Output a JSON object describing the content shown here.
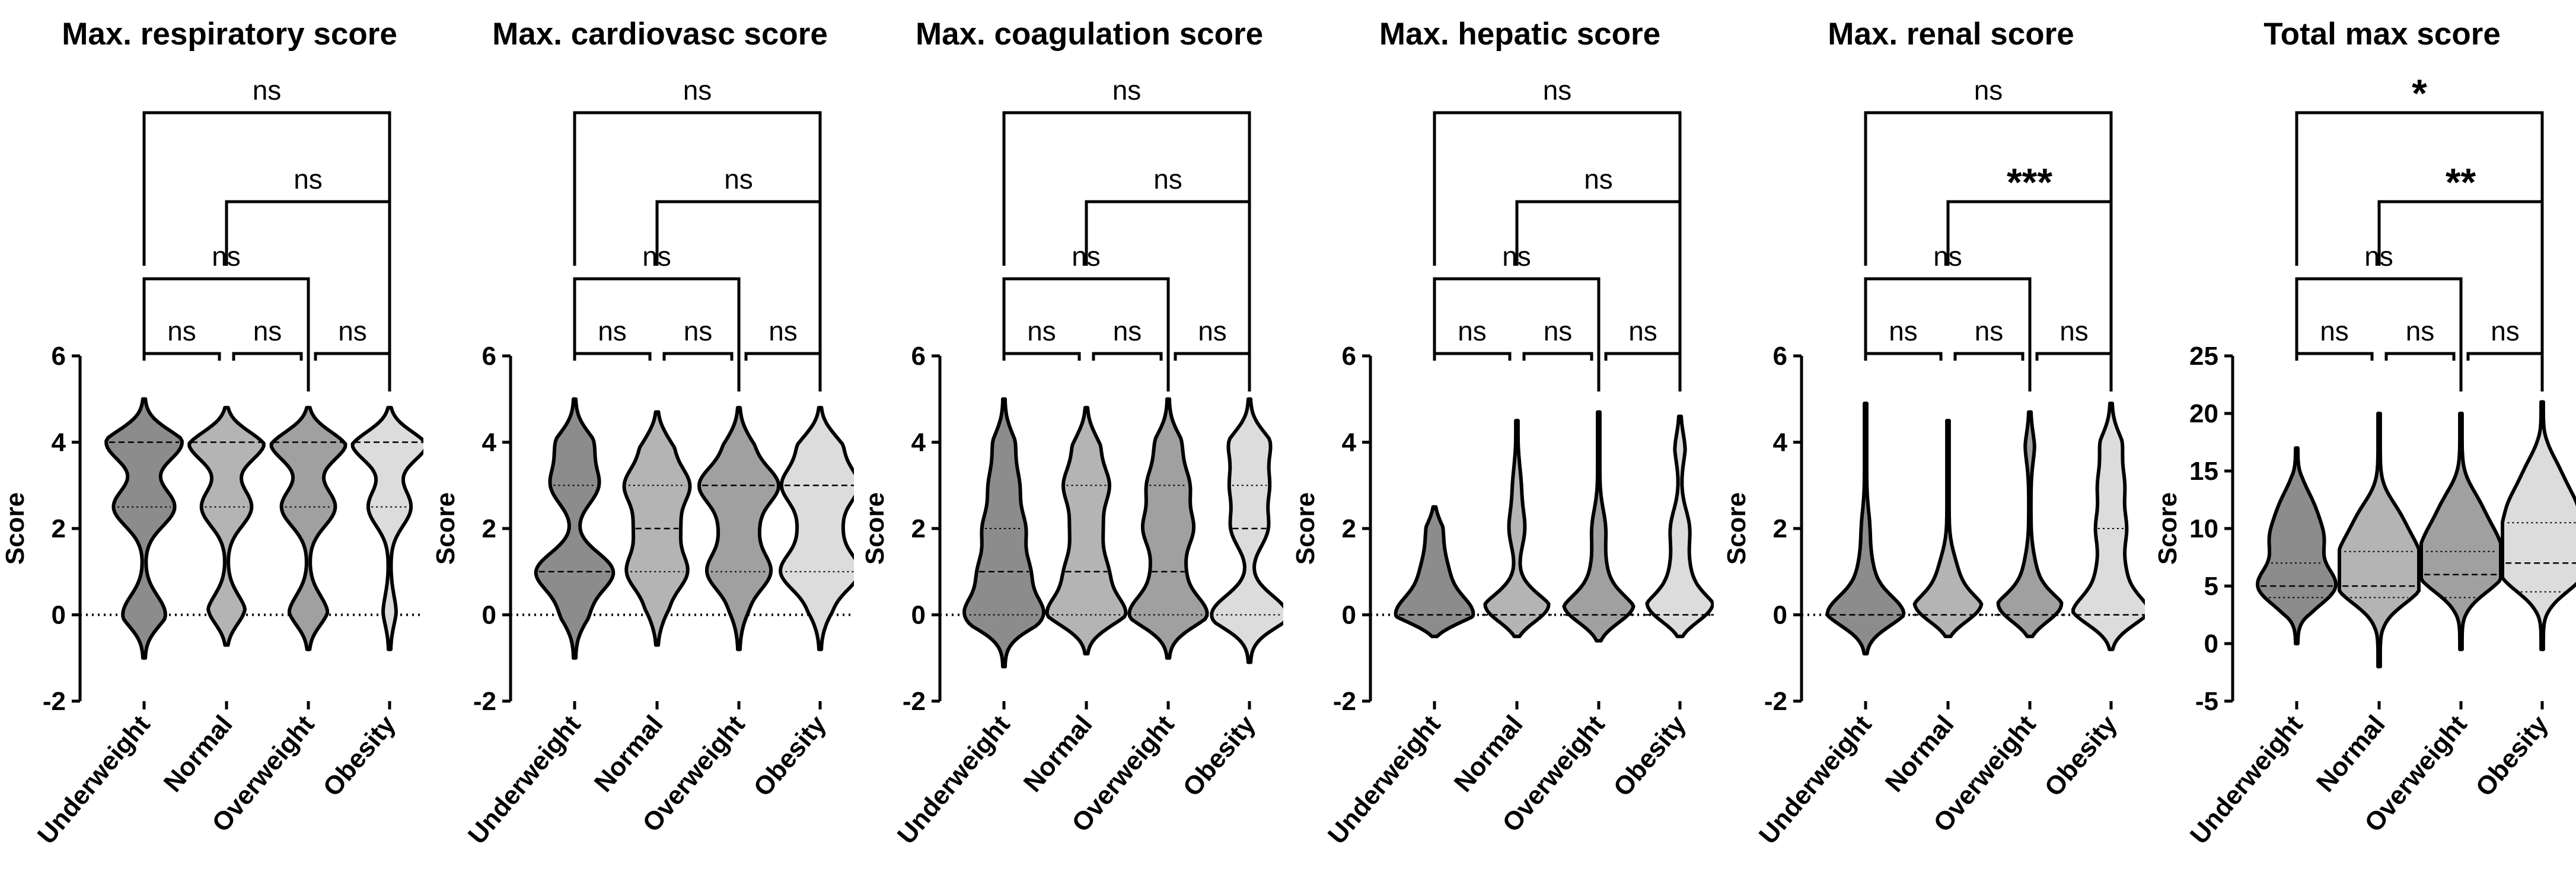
{
  "chart_data": [
    {
      "type": "violin",
      "title": "Max. respiratory score",
      "ylabel": "Score",
      "ylim": [
        -2,
        6
      ],
      "yticks": [
        "6",
        "4",
        "2",
        "0",
        "-2"
      ],
      "reference_line": 0,
      "categories": [
        "Underweight",
        "Normal",
        "Overweight",
        "Obesity"
      ],
      "colors": [
        "#8c8c8c",
        "#b4b4b4",
        "#a0a0a0",
        "#dcdcdc"
      ],
      "series": [
        {
          "name": "Underweight",
          "min": -1,
          "max": 5,
          "q1": 2.5,
          "median": 4,
          "q3": 4,
          "modes": [
            [
              0,
              0.55
            ],
            [
              2.5,
              0.8
            ],
            [
              4,
              1.0
            ]
          ]
        },
        {
          "name": "Normal",
          "min": -0.7,
          "max": 4.8,
          "q1": 2.5,
          "median": 4,
          "q3": 4,
          "modes": [
            [
              0,
              0.5
            ],
            [
              2.5,
              0.65
            ],
            [
              4,
              1.0
            ]
          ]
        },
        {
          "name": "Overweight",
          "min": -0.8,
          "max": 4.8,
          "q1": 2.5,
          "median": 4,
          "q3": 4,
          "modes": [
            [
              0,
              0.5
            ],
            [
              2.5,
              0.7
            ],
            [
              4,
              1.0
            ]
          ]
        },
        {
          "name": "Obesity",
          "min": -0.8,
          "max": 4.8,
          "q1": 2.5,
          "median": 4,
          "q3": 4,
          "modes": [
            [
              0,
              0.15
            ],
            [
              2.5,
              0.55
            ],
            [
              4,
              1.0
            ]
          ]
        }
      ],
      "comparisons": [
        {
          "from": "Underweight",
          "to": "Normal",
          "label": "ns"
        },
        {
          "from": "Normal",
          "to": "Overweight",
          "label": "ns"
        },
        {
          "from": "Overweight",
          "to": "Obesity",
          "label": "ns"
        },
        {
          "from": "Underweight",
          "to": "Overweight",
          "label": "ns"
        },
        {
          "from": "Normal",
          "to": "Obesity",
          "label": "ns"
        },
        {
          "from": "Underweight",
          "to": "Obesity",
          "label": "ns"
        }
      ]
    },
    {
      "type": "violin",
      "title": "Max. cardiovasc score",
      "ylabel": "Score",
      "ylim": [
        -2,
        6
      ],
      "yticks": [
        "6",
        "4",
        "2",
        "0",
        "-2"
      ],
      "reference_line": 0,
      "categories": [
        "Underweight",
        "Normal",
        "Overweight",
        "Obesity"
      ],
      "colors": [
        "#8c8c8c",
        "#b4b4b4",
        "#a0a0a0",
        "#dcdcdc"
      ],
      "series": [
        {
          "name": "Underweight",
          "min": -1,
          "max": 5,
          "q1": 1,
          "median": 1,
          "q3": 3,
          "modes": [
            [
              0,
              0.3
            ],
            [
              1,
              1.0
            ],
            [
              3,
              0.6
            ],
            [
              4,
              0.45
            ]
          ]
        },
        {
          "name": "Normal",
          "min": -0.7,
          "max": 4.7,
          "q1": 1,
          "median": 2,
          "q3": 3,
          "modes": [
            [
              0,
              0.2
            ],
            [
              1,
              0.75
            ],
            [
              2,
              0.5
            ],
            [
              3,
              0.8
            ],
            [
              4,
              0.35
            ]
          ]
        },
        {
          "name": "Overweight",
          "min": -0.8,
          "max": 4.8,
          "q1": 1,
          "median": 3,
          "q3": 3,
          "modes": [
            [
              0,
              0.15
            ],
            [
              1,
              0.8
            ],
            [
              2,
              0.4
            ],
            [
              3,
              1.0
            ],
            [
              4,
              0.3
            ]
          ]
        },
        {
          "name": "Obesity",
          "min": -0.8,
          "max": 4.8,
          "q1": 1,
          "median": 3,
          "q3": 3,
          "modes": [
            [
              0,
              0.2
            ],
            [
              1,
              1.0
            ],
            [
              2,
              0.45
            ],
            [
              3,
              0.95
            ],
            [
              4,
              0.5
            ]
          ]
        }
      ],
      "comparisons": [
        {
          "from": "Underweight",
          "to": "Normal",
          "label": "ns"
        },
        {
          "from": "Normal",
          "to": "Overweight",
          "label": "ns"
        },
        {
          "from": "Overweight",
          "to": "Obesity",
          "label": "ns"
        },
        {
          "from": "Underweight",
          "to": "Overweight",
          "label": "ns"
        },
        {
          "from": "Normal",
          "to": "Obesity",
          "label": "ns"
        },
        {
          "from": "Underweight",
          "to": "Obesity",
          "label": "ns"
        }
      ]
    },
    {
      "type": "violin",
      "title": "Max. coagulation score",
      "ylabel": "Score",
      "ylim": [
        -2,
        6
      ],
      "yticks": [
        "6",
        "4",
        "2",
        "0",
        "-2"
      ],
      "reference_line": 0,
      "categories": [
        "Underweight",
        "Normal",
        "Overweight",
        "Obesity"
      ],
      "colors": [
        "#8c8c8c",
        "#b4b4b4",
        "#a0a0a0",
        "#dcdcdc"
      ],
      "series": [
        {
          "name": "Underweight",
          "min": -1.2,
          "max": 5,
          "q1": 0,
          "median": 1,
          "q3": 2,
          "modes": [
            [
              0,
              1.0
            ],
            [
              1,
              0.6
            ],
            [
              2,
              0.5
            ],
            [
              3,
              0.35
            ],
            [
              4,
              0.25
            ]
          ]
        },
        {
          "name": "Normal",
          "min": -0.9,
          "max": 4.8,
          "q1": 0,
          "median": 1,
          "q3": 3,
          "modes": [
            [
              0,
              1.0
            ],
            [
              1,
              0.5
            ],
            [
              2,
              0.35
            ],
            [
              3,
              0.55
            ],
            [
              4,
              0.3
            ]
          ]
        },
        {
          "name": "Overweight",
          "min": -1,
          "max": 5,
          "q1": 0,
          "median": 1,
          "q3": 3,
          "modes": [
            [
              0,
              1.0
            ],
            [
              1,
              0.35
            ],
            [
              2,
              0.6
            ],
            [
              3,
              0.5
            ],
            [
              4,
              0.3
            ]
          ]
        },
        {
          "name": "Obesity",
          "min": -1.1,
          "max": 5,
          "q1": 0,
          "median": 2,
          "q3": 3,
          "modes": [
            [
              0,
              1.0
            ],
            [
              2,
              0.45
            ],
            [
              3,
              0.45
            ],
            [
              4,
              0.5
            ]
          ]
        }
      ],
      "comparisons": [
        {
          "from": "Underweight",
          "to": "Normal",
          "label": "ns"
        },
        {
          "from": "Normal",
          "to": "Overweight",
          "label": "ns"
        },
        {
          "from": "Overweight",
          "to": "Obesity",
          "label": "ns"
        },
        {
          "from": "Underweight",
          "to": "Overweight",
          "label": "ns"
        },
        {
          "from": "Normal",
          "to": "Obesity",
          "label": "ns"
        },
        {
          "from": "Underweight",
          "to": "Obesity",
          "label": "ns"
        }
      ]
    },
    {
      "type": "violin",
      "title": "Max. hepatic score",
      "ylabel": "Score",
      "ylim": [
        -2,
        6
      ],
      "yticks": [
        "6",
        "4",
        "2",
        "0",
        "-2"
      ],
      "reference_line": 0,
      "categories": [
        "Underweight",
        "Normal",
        "Overweight",
        "Obesity"
      ],
      "colors": [
        "#8c8c8c",
        "#b4b4b4",
        "#a0a0a0",
        "#dcdcdc"
      ],
      "series": [
        {
          "name": "Underweight",
          "min": -0.5,
          "max": 2.5,
          "q1": 0,
          "median": 0,
          "q3": 0,
          "modes": [
            [
              0,
              1.0
            ],
            [
              1,
              0.3
            ],
            [
              2,
              0.18
            ]
          ]
        },
        {
          "name": "Normal",
          "min": -0.5,
          "max": 4.5,
          "q1": 0,
          "median": 0,
          "q3": 0,
          "modes": [
            [
              0,
              1.0
            ],
            [
              2,
              0.18
            ],
            [
              3,
              0.08
            ]
          ]
        },
        {
          "name": "Overweight",
          "min": -0.6,
          "max": 4.7,
          "q1": 0,
          "median": 0,
          "q3": 0,
          "modes": [
            [
              0,
              1.0
            ],
            [
              1,
              0.15
            ],
            [
              2,
              0.15
            ]
          ]
        },
        {
          "name": "Obesity",
          "min": -0.5,
          "max": 4.6,
          "q1": 0,
          "median": 0,
          "q3": 0,
          "modes": [
            [
              0,
              1.0
            ],
            [
              1,
              0.2
            ],
            [
              2,
              0.22
            ],
            [
              4,
              0.12
            ]
          ]
        }
      ],
      "comparisons": [
        {
          "from": "Underweight",
          "to": "Normal",
          "label": "ns"
        },
        {
          "from": "Normal",
          "to": "Overweight",
          "label": "ns"
        },
        {
          "from": "Overweight",
          "to": "Obesity",
          "label": "ns"
        },
        {
          "from": "Underweight",
          "to": "Overweight",
          "label": "ns"
        },
        {
          "from": "Normal",
          "to": "Obesity",
          "label": "ns"
        },
        {
          "from": "Underweight",
          "to": "Obesity",
          "label": "ns"
        }
      ]
    },
    {
      "type": "violin",
      "title": "Max. renal score",
      "ylabel": "Score",
      "ylim": [
        -2,
        6
      ],
      "yticks": [
        "6",
        "4",
        "2",
        "0",
        "-2"
      ],
      "reference_line": 0,
      "categories": [
        "Underweight",
        "Normal",
        "Overweight",
        "Obesity"
      ],
      "colors": [
        "#8c8c8c",
        "#b4b4b4",
        "#a0a0a0",
        "#dcdcdc"
      ],
      "series": [
        {
          "name": "Underweight",
          "min": -0.9,
          "max": 4.9,
          "q1": 0,
          "median": 0,
          "q3": 0,
          "modes": [
            [
              0,
              1.0
            ],
            [
              1,
              0.15
            ],
            [
              2,
              0.08
            ]
          ]
        },
        {
          "name": "Normal",
          "min": -0.5,
          "max": 4.5,
          "q1": 0,
          "median": 0,
          "q3": 0,
          "modes": [
            [
              0,
              1.0
            ],
            [
              1,
              0.2
            ]
          ]
        },
        {
          "name": "Overweight",
          "min": -0.5,
          "max": 4.7,
          "q1": 0,
          "median": 0,
          "q3": 0,
          "modes": [
            [
              0,
              1.0
            ],
            [
              1,
              0.12
            ],
            [
              4,
              0.1
            ]
          ]
        },
        {
          "name": "Obesity",
          "min": -0.8,
          "max": 4.9,
          "q1": 0,
          "median": 0,
          "q3": 2,
          "modes": [
            [
              0,
              1.0
            ],
            [
              1,
              0.3
            ],
            [
              2,
              0.35
            ],
            [
              3,
              0.3
            ],
            [
              4,
              0.25
            ]
          ]
        }
      ],
      "comparisons": [
        {
          "from": "Underweight",
          "to": "Normal",
          "label": "ns"
        },
        {
          "from": "Normal",
          "to": "Overweight",
          "label": "ns"
        },
        {
          "from": "Overweight",
          "to": "Obesity",
          "label": "ns"
        },
        {
          "from": "Underweight",
          "to": "Overweight",
          "label": "ns"
        },
        {
          "from": "Normal",
          "to": "Obesity",
          "label": "***"
        },
        {
          "from": "Underweight",
          "to": "Obesity",
          "label": "ns"
        }
      ]
    },
    {
      "type": "violin",
      "title": "Total max score",
      "ylabel": "Score",
      "ylim": [
        -5,
        25
      ],
      "yticks": [
        "25",
        "20",
        "15",
        "10",
        "5",
        "0",
        "-5"
      ],
      "reference_line": null,
      "categories": [
        "Underweight",
        "Normal",
        "Overweight",
        "Obesity"
      ],
      "colors": [
        "#8c8c8c",
        "#b4b4b4",
        "#a0a0a0",
        "#dcdcdc"
      ],
      "series": [
        {
          "name": "Underweight",
          "min": 0,
          "max": 17,
          "q1": 4,
          "median": 5,
          "q3": 7,
          "modes": [
            [
              5,
              1.0
            ],
            [
              9,
              0.6
            ],
            [
              12,
              0.35
            ]
          ]
        },
        {
          "name": "Normal",
          "min": -2,
          "max": 20,
          "q1": 4,
          "median": 5,
          "q3": 8,
          "modes": [
            [
              5,
              1.0
            ],
            [
              8,
              0.8
            ],
            [
              11,
              0.45
            ]
          ]
        },
        {
          "name": "Overweight",
          "min": -0.5,
          "max": 20,
          "q1": 4,
          "median": 6,
          "q3": 8,
          "modes": [
            [
              6,
              1.0
            ],
            [
              9,
              0.75
            ],
            [
              12,
              0.4
            ]
          ]
        },
        {
          "name": "Obesity",
          "min": -0.5,
          "max": 21,
          "q1": 4.5,
          "median": 7,
          "q3": 10.5,
          "modes": [
            [
              6,
              0.95
            ],
            [
              9,
              0.85
            ],
            [
              12,
              0.7
            ],
            [
              15,
              0.35
            ]
          ]
        }
      ],
      "comparisons": [
        {
          "from": "Underweight",
          "to": "Normal",
          "label": "ns"
        },
        {
          "from": "Normal",
          "to": "Overweight",
          "label": "ns"
        },
        {
          "from": "Overweight",
          "to": "Obesity",
          "label": "ns"
        },
        {
          "from": "Underweight",
          "to": "Overweight",
          "label": "ns"
        },
        {
          "from": "Normal",
          "to": "Obesity",
          "label": "**"
        },
        {
          "from": "Underweight",
          "to": "Obesity",
          "label": "*"
        }
      ]
    }
  ]
}
